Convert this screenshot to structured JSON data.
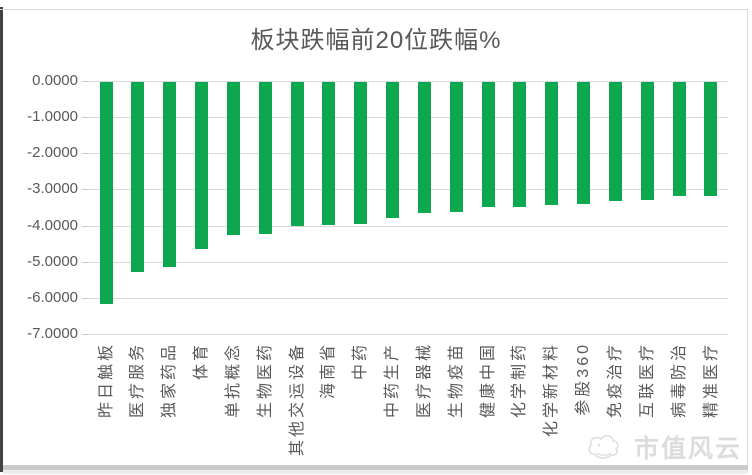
{
  "title": "板块跌幅前20位跌幅%",
  "watermark": {
    "text": "市值风云"
  },
  "colors": {
    "bar": "#0da750",
    "grid": "#d9d9d9",
    "axis_text": "#595959",
    "title_text": "#595959",
    "watermark_text": "#dcdcdc"
  },
  "chart_data": {
    "type": "bar",
    "title": "板块跌幅前20位跌幅%",
    "xlabel": "",
    "ylabel": "",
    "ylim": [
      -7,
      0
    ],
    "grid": true,
    "legend": false,
    "bar_direction": "negative-down",
    "y_ticks": [
      "0.0000",
      "-1.0000",
      "-2.0000",
      "-3.0000",
      "-4.0000",
      "-5.0000",
      "-6.0000",
      "-7.0000"
    ],
    "categories": [
      "昨日触板",
      "医疗服务",
      "独家药品",
      "体育",
      "单抗概念",
      "生物医药",
      "其他交运设备",
      "海南省",
      "中药",
      "中药生产",
      "医疗器械",
      "生物疫苗",
      "健康中国",
      "化学制药",
      "化学新材料",
      "参股360",
      "免疫治疗",
      "互联医疗",
      "病毒防治",
      "精准医疗"
    ],
    "values": [
      -6.17,
      -5.28,
      -5.14,
      -4.65,
      -4.26,
      -4.22,
      -4.0,
      -3.99,
      -3.96,
      -3.79,
      -3.65,
      -3.62,
      -3.5,
      -3.49,
      -3.42,
      -3.41,
      -3.31,
      -3.3,
      -3.19,
      -3.18
    ]
  }
}
